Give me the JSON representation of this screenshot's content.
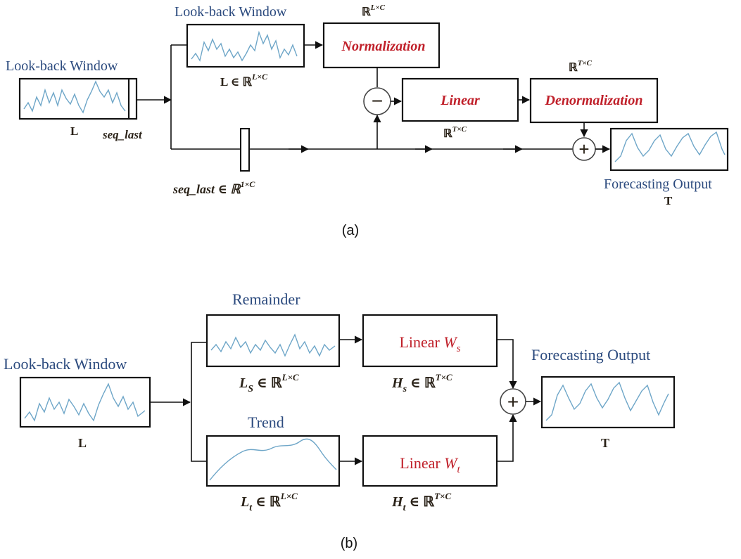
{
  "panel_a": {
    "caption": "(a)",
    "input_title": "Look-back Window",
    "input_symbol": "L",
    "seq_last_label": "seq_last",
    "window_title": "Look-back Window",
    "window_dim": "L ∈ ℝ",
    "window_dim_sup": "L×C",
    "norm_dim_sup": "L×C",
    "norm_label": "Normalization",
    "linear_label": "Linear",
    "linear_dim_sup": "T×C",
    "denorm_label": "Denormalization",
    "denorm_dim_sup": "T×C",
    "seq_last_dim": "seq_last ∈ ℝ",
    "seq_last_dim_sup": "1×C",
    "output_title": "Forecasting Output",
    "output_symbol": "T",
    "minus_sign": "−",
    "plus_sign": "+"
  },
  "panel_b": {
    "caption": "(b)",
    "input_title": "Look-back Window",
    "input_symbol": "L",
    "remainder_title": "Remainder",
    "remainder_dim_var": "L",
    "remainder_dim_sub": "S",
    "remainder_dim_sup": "L×C",
    "trend_title": "Trend",
    "trend_dim_var": "L",
    "trend_dim_sub": "t",
    "trend_dim_sup": "L×C",
    "linear_s_label": "Linear ",
    "linear_s_var": "W",
    "linear_s_sub": "s",
    "hs_var": "H",
    "hs_sub": "s",
    "hs_sup": "T×C",
    "linear_t_label": "Linear ",
    "linear_t_var": "W",
    "linear_t_sub": "t",
    "ht_var": "H",
    "ht_sub": "t",
    "ht_sup": "T×C",
    "in_symbol": " ∈ ℝ",
    "output_title": "Forecasting Output",
    "output_symbol": "T",
    "plus_sign": "+"
  },
  "colors": {
    "title_blue": "#2b4a7e",
    "module_red": "#c0202a",
    "signal_blue": "#6ea6c8"
  }
}
